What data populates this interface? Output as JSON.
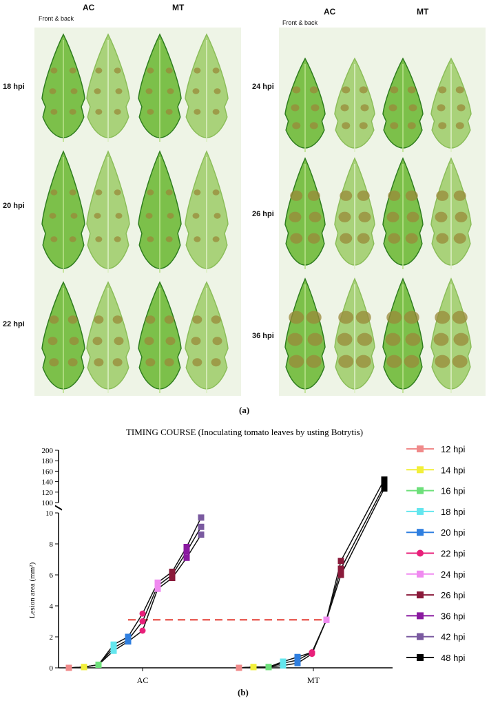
{
  "figure": {
    "panel_a": {
      "left": {
        "headers": [
          "AC",
          "MT"
        ],
        "sub_header": "Front & back",
        "rows": [
          "18 hpi",
          "20 hpi",
          "22 hpi"
        ]
      },
      "right": {
        "headers": [
          "AC",
          "MT"
        ],
        "sub_header": "Front & back",
        "rows": [
          "24 hpi",
          "26 hpi",
          "36 hpi"
        ]
      },
      "label": "(a)"
    },
    "panel_b_label": "(b)"
  },
  "colors": {
    "leaf_light": "#7cc04a",
    "leaf_dark": "#2f7d1f",
    "leaf_back": "#a9d27a",
    "lesion": "#9a8a3a",
    "threshold_line": "#e8534b",
    "line": "#111111"
  },
  "chart_data": {
    "type": "line",
    "title": "TIMING COURSE (Inoculating tomato leaves by usting Botrytis)",
    "xlabel": "",
    "ylabel": "Lesion area (mm²)",
    "x_categories": [
      "AC",
      "MT"
    ],
    "y_ticks_lower": [
      "0",
      "2",
      "4",
      "6",
      "8",
      "10"
    ],
    "y_ticks_upper": [
      "100",
      "120",
      "140",
      "160",
      "180",
      "200"
    ],
    "ylim_lower": [
      0,
      10
    ],
    "ylim_upper": [
      100,
      200
    ],
    "legend_position": "right",
    "threshold_line": 3.1,
    "series": [
      {
        "name": "12 hpi",
        "color": "#f08a8a",
        "marker": "square",
        "AC": [
          0,
          0,
          0
        ],
        "MT": [
          0,
          0,
          0
        ]
      },
      {
        "name": "14 hpi",
        "color": "#f2ef3a",
        "marker": "square",
        "AC": [
          0.05,
          0.05,
          0.05
        ],
        "MT": [
          0.05,
          0.05,
          0.05
        ]
      },
      {
        "name": "16 hpi",
        "color": "#6de07a",
        "marker": "square",
        "AC": [
          0.2,
          0.2,
          0.2
        ],
        "MT": [
          0.05,
          0.05,
          0.05
        ]
      },
      {
        "name": "18 hpi",
        "color": "#63e6ee",
        "marker": "square",
        "AC": [
          1.1,
          1.3,
          1.5
        ],
        "MT": [
          0.15,
          0.3,
          0.4
        ]
      },
      {
        "name": "20 hpi",
        "color": "#2f7fe0",
        "marker": "square",
        "AC": [
          1.7,
          1.8,
          2.0
        ],
        "MT": [
          0.3,
          0.5,
          0.7
        ]
      },
      {
        "name": "22 hpi",
        "color": "#e8207a",
        "marker": "circle",
        "AC": [
          2.4,
          3.0,
          3.5
        ],
        "MT": [
          0.9,
          1.0,
          1.0
        ]
      },
      {
        "name": "24 hpi",
        "color": "#f08af0",
        "marker": "square",
        "AC": [
          5.1,
          5.3,
          5.5
        ],
        "MT": [
          3.1,
          3.1,
          3.1
        ]
      },
      {
        "name": "26 hpi",
        "color": "#8a1a3a",
        "marker": "square",
        "AC": [
          5.8,
          6.0,
          6.2
        ],
        "MT": [
          6.0,
          6.4,
          6.9
        ]
      },
      {
        "name": "36 hpi",
        "color": "#8a1aa0",
        "marker": "square",
        "AC": [
          7.1,
          7.5,
          7.8
        ],
        "MT": [],
        "MT_note": ""
      },
      {
        "name": "42 hpi",
        "color": "#7a5aa0",
        "marker": "square",
        "AC": [
          8.6,
          9.1,
          9.7
        ],
        "MT": []
      },
      {
        "name": "48 hpi",
        "color": "#000000",
        "marker": "square",
        "AC": [],
        "MT": [
          127,
          133,
          144
        ]
      }
    ]
  }
}
